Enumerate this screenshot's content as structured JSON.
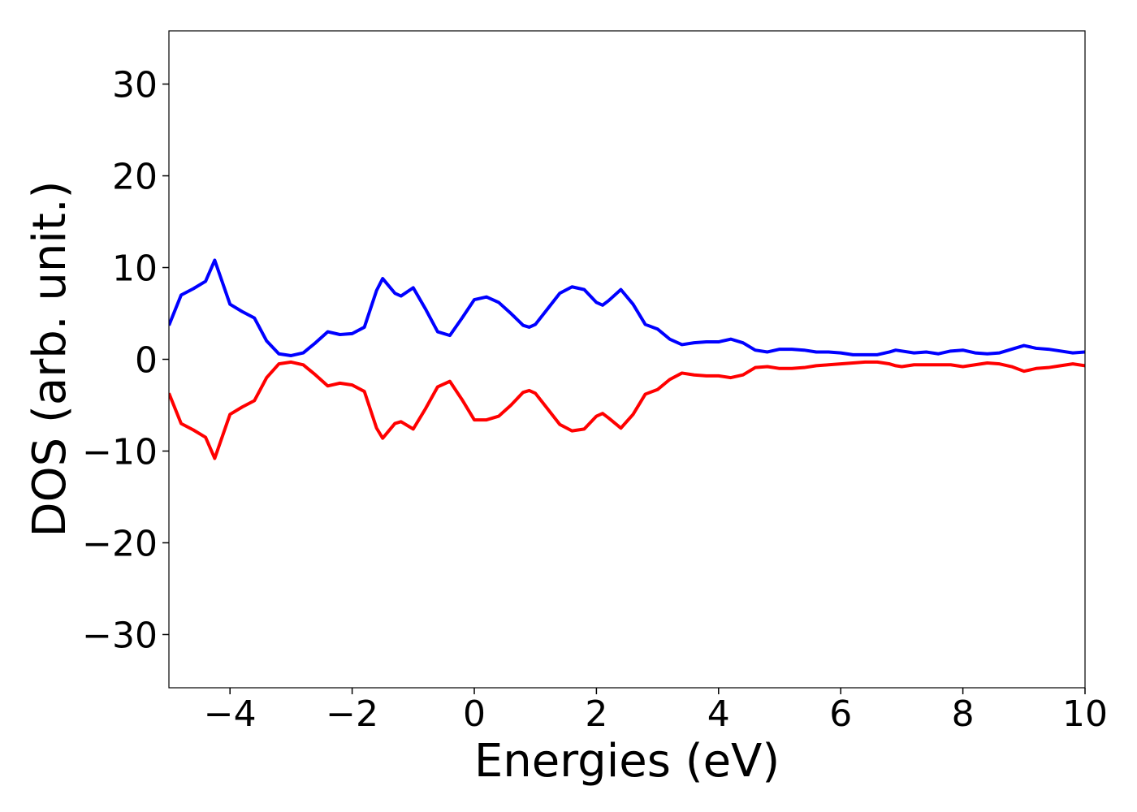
{
  "chart_data": {
    "type": "line",
    "x_label": "Energies (eV)",
    "y_label": "DOS (arb. unit.)",
    "x": [
      -5,
      -4.8,
      -4.6,
      -4.4,
      -4.25,
      -4.0,
      -3.8,
      -3.6,
      -3.4,
      -3.2,
      -3.0,
      -2.8,
      -2.6,
      -2.4,
      -2.2,
      -2.0,
      -1.8,
      -1.6,
      -1.5,
      -1.3,
      -1.2,
      -1.0,
      -0.8,
      -0.6,
      -0.4,
      -0.2,
      0,
      0.2,
      0.4,
      0.6,
      0.8,
      0.9,
      1.0,
      1.2,
      1.4,
      1.6,
      1.8,
      2.0,
      2.1,
      2.2,
      2.4,
      2.6,
      2.8,
      3.0,
      3.2,
      3.4,
      3.6,
      3.8,
      4.0,
      4.2,
      4.4,
      4.6,
      4.8,
      5.0,
      5.2,
      5.4,
      5.6,
      5.8,
      6.0,
      6.2,
      6.4,
      6.6,
      6.8,
      6.9,
      7.0,
      7.2,
      7.4,
      7.6,
      7.8,
      8.0,
      8.2,
      8.4,
      8.6,
      8.8,
      9.0,
      9.2,
      9.4,
      9.6,
      9.8,
      10.0
    ],
    "series": [
      {
        "color": "#0000ff",
        "values": [
          3.7,
          7.0,
          7.7,
          8.5,
          10.8,
          6.0,
          5.2,
          4.5,
          2.0,
          0.6,
          0.4,
          0.7,
          1.8,
          3.0,
          2.7,
          2.8,
          3.5,
          7.5,
          8.8,
          7.2,
          6.9,
          7.8,
          5.5,
          3.0,
          2.6,
          4.5,
          6.5,
          6.8,
          6.2,
          5.0,
          3.7,
          3.5,
          3.8,
          5.5,
          7.2,
          7.9,
          7.6,
          6.2,
          5.9,
          6.4,
          7.6,
          6.0,
          3.8,
          3.3,
          2.2,
          1.6,
          1.8,
          1.9,
          1.9,
          2.2,
          1.8,
          1.0,
          0.8,
          1.1,
          1.1,
          1.0,
          0.8,
          0.8,
          0.7,
          0.5,
          0.5,
          0.5,
          0.8,
          1.0,
          0.9,
          0.7,
          0.8,
          0.6,
          0.9,
          1.0,
          0.7,
          0.6,
          0.7,
          1.1,
          1.5,
          1.2,
          1.1,
          0.9,
          0.7,
          0.8
        ]
      },
      {
        "color": "#ff0000",
        "values": [
          -3.7,
          -7.0,
          -7.7,
          -8.5,
          -10.8,
          -6.0,
          -5.2,
          -4.5,
          -2.0,
          -0.5,
          -0.3,
          -0.6,
          -1.7,
          -2.9,
          -2.6,
          -2.8,
          -3.5,
          -7.5,
          -8.6,
          -7.0,
          -6.8,
          -7.6,
          -5.4,
          -3.0,
          -2.4,
          -4.4,
          -6.6,
          -6.6,
          -6.2,
          -5.0,
          -3.6,
          -3.4,
          -3.7,
          -5.4,
          -7.1,
          -7.8,
          -7.6,
          -6.2,
          -5.9,
          -6.4,
          -7.5,
          -6.0,
          -3.8,
          -3.3,
          -2.2,
          -1.5,
          -1.7,
          -1.8,
          -1.8,
          -2.0,
          -1.7,
          -0.9,
          -0.8,
          -1.0,
          -1.0,
          -0.9,
          -0.7,
          -0.6,
          -0.5,
          -0.4,
          -0.3,
          -0.3,
          -0.5,
          -0.7,
          -0.8,
          -0.6,
          -0.6,
          -0.6,
          -0.6,
          -0.8,
          -0.6,
          -0.4,
          -0.5,
          -0.8,
          -1.3,
          -1.0,
          -0.9,
          -0.7,
          -0.5,
          -0.7
        ]
      }
    ],
    "xlim": [
      -5,
      10
    ],
    "ylim": [
      -35.8,
      35.8
    ],
    "xticks": [
      {
        "value": -4,
        "label": "−4"
      },
      {
        "value": -2,
        "label": "−2"
      },
      0,
      2,
      4,
      6,
      8,
      10
    ],
    "yticks": [
      {
        "value": -30,
        "label": "−30"
      },
      {
        "value": -20,
        "label": "−20"
      },
      {
        "value": -10,
        "label": "−10"
      },
      0,
      10,
      20,
      30
    ],
    "grid": false
  }
}
